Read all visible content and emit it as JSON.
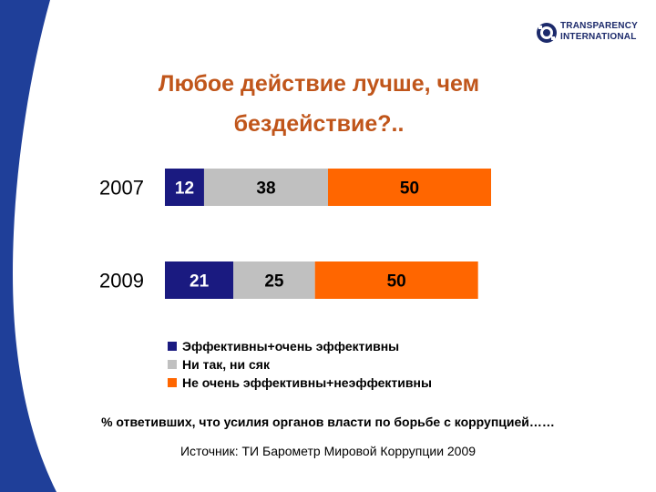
{
  "branding": {
    "logo_line1": "TRANSPARENCY",
    "logo_line2": "INTERNATIONAL",
    "logo_icon": "transparency-international-logo-icon"
  },
  "colors": {
    "band": "#1f3f99",
    "title": "#c0551a",
    "series_effective": "#1a1a80",
    "series_neutral": "#c0c0c0",
    "series_ineffective": "#ff6600"
  },
  "title_line1": "Любое действие лучше, чем",
  "title_line2": "бездействие?..",
  "note": "% ответивших, что усилия органов власти по борьбе с коррупцией……",
  "source": "Источник: ТИ Барометр Мировой Коррупции 2009",
  "chart_data": {
    "type": "bar",
    "orientation": "horizontal",
    "stacked": true,
    "categories": [
      "2007",
      "2009"
    ],
    "series": [
      {
        "name": "Эффективны+очень эффективны",
        "values": [
          12,
          21
        ],
        "color": "#1a1a80",
        "label_color": "#ffffff"
      },
      {
        "name": "Ни так, ни сяк",
        "values": [
          38,
          25
        ],
        "color": "#c0c0c0",
        "label_color": "#000000"
      },
      {
        "name": "Не очень эффективны+неэффективны",
        "values": [
          50,
          50
        ],
        "color": "#ff6600",
        "label_color": "#000000"
      }
    ],
    "xlim": [
      0,
      100
    ],
    "grid": false,
    "legend_position": "bottom"
  }
}
